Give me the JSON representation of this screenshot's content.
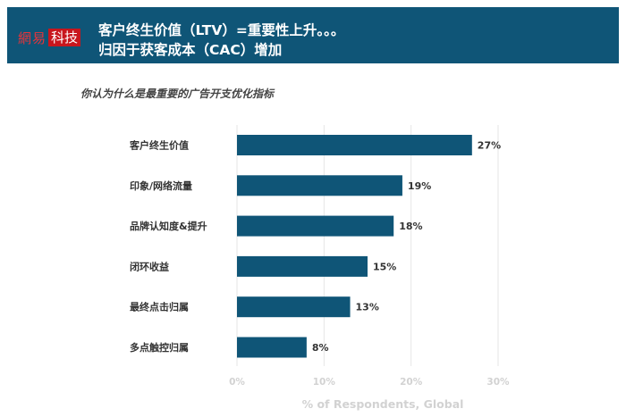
{
  "header": {
    "logo_part1": "網易",
    "logo_part2": "科技",
    "title_line1": "客户终生价值（LTV）=重要性上升。。。",
    "title_line2": "归因于获客成本（CAC）增加"
  },
  "chart_data": {
    "type": "bar",
    "orientation": "horizontal",
    "title": "你认为什么是最重要的广告开支优化指标",
    "categories": [
      "客户终生价值",
      "印象/网络流量",
      "品牌认知度&提升",
      "闭环收益",
      "最终点击归属",
      "多点触控归属"
    ],
    "values": [
      27,
      19,
      18,
      15,
      13,
      8
    ],
    "value_labels": [
      "27%",
      "19%",
      "18%",
      "15%",
      "13%",
      "8%"
    ],
    "xlim": [
      0,
      30
    ],
    "xticks": [
      0,
      10,
      20,
      30
    ],
    "xtick_labels": [
      "0%",
      "10%",
      "20%",
      "30%"
    ],
    "xlabel": "% of Respondents, Global",
    "ylabel": "",
    "grid": true,
    "colors": {
      "bar": "#0f5577",
      "grid": "#e6e6e6",
      "header_bg": "#0f5577"
    }
  }
}
